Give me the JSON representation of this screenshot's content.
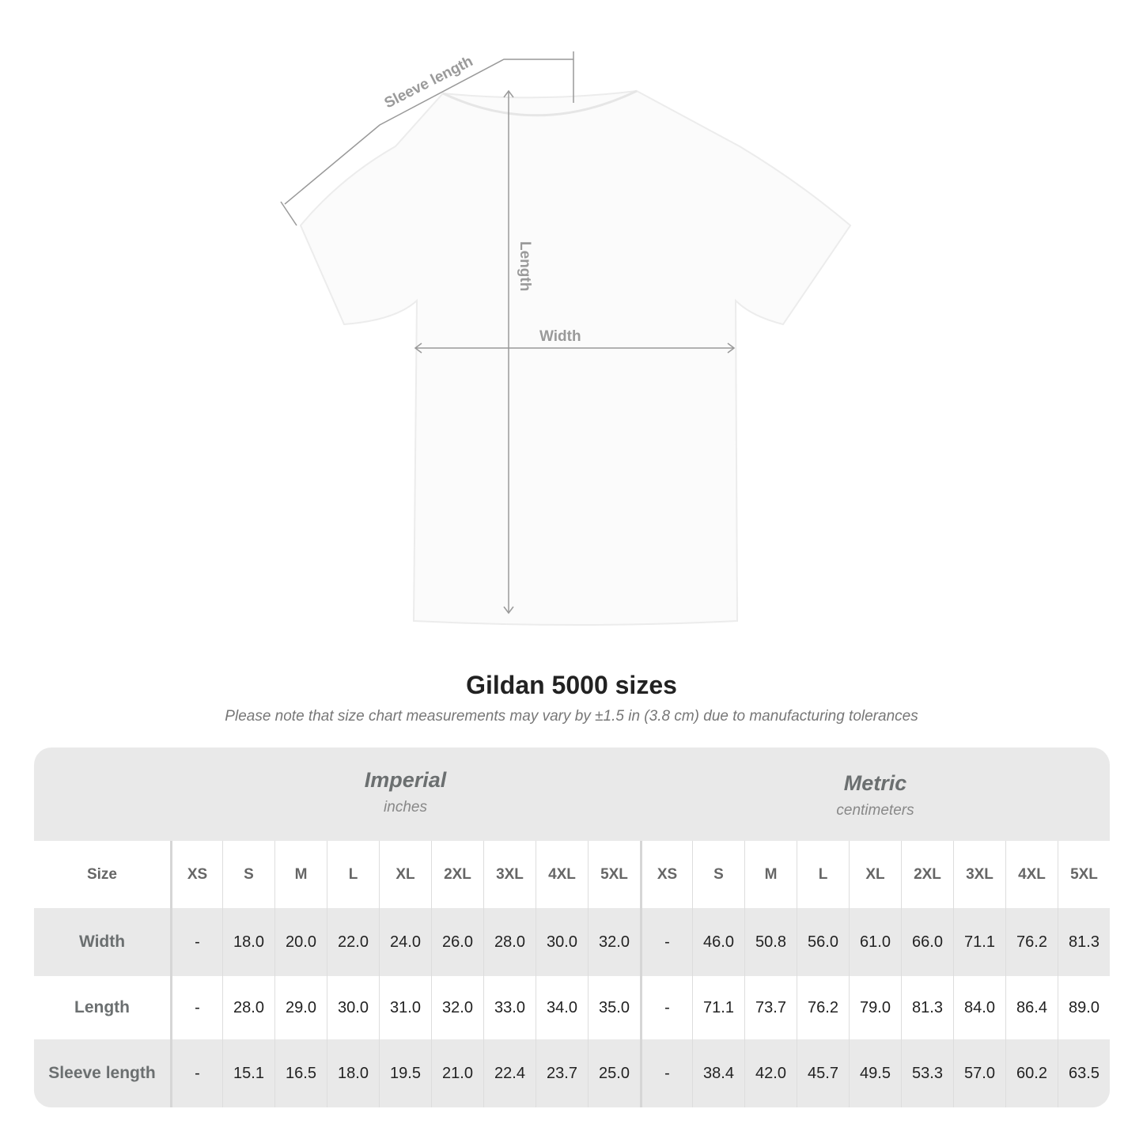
{
  "diagram": {
    "labels": {
      "sleeve": "Sleeve length",
      "length": "Length",
      "width": "Width"
    },
    "line_color": "#999999"
  },
  "title": "Gildan 5000 sizes",
  "subtitle": "Please note that size chart measurements may vary by ±1.5 in (3.8 cm) due to manufacturing tolerances",
  "table": {
    "imperial": {
      "label": "Imperial",
      "unit": "inches"
    },
    "metric": {
      "label": "Metric",
      "unit": "centimeters"
    },
    "size_label": "Size",
    "sizes": [
      "XS",
      "S",
      "M",
      "L",
      "XL",
      "2XL",
      "3XL",
      "4XL",
      "5XL"
    ],
    "rows": [
      {
        "label": "Width",
        "imperial": [
          "-",
          "18.0",
          "20.0",
          "22.0",
          "24.0",
          "26.0",
          "28.0",
          "30.0",
          "32.0"
        ],
        "metric": [
          "-",
          "46.0",
          "50.8",
          "56.0",
          "61.0",
          "66.0",
          "71.1",
          "76.2",
          "81.3"
        ]
      },
      {
        "label": "Length",
        "imperial": [
          "-",
          "28.0",
          "29.0",
          "30.0",
          "31.0",
          "32.0",
          "33.0",
          "34.0",
          "35.0"
        ],
        "metric": [
          "-",
          "71.1",
          "73.7",
          "76.2",
          "79.0",
          "81.3",
          "84.0",
          "86.4",
          "89.0"
        ]
      },
      {
        "label": "Sleeve length",
        "imperial": [
          "-",
          "15.1",
          "16.5",
          "18.0",
          "19.5",
          "21.0",
          "22.4",
          "23.7",
          "25.0"
        ],
        "metric": [
          "-",
          "38.4",
          "42.0",
          "45.7",
          "49.5",
          "53.3",
          "57.0",
          "60.2",
          "63.5"
        ]
      }
    ],
    "colors": {
      "shade": "#e9e9e9",
      "label_text": "#6b6f70"
    }
  }
}
